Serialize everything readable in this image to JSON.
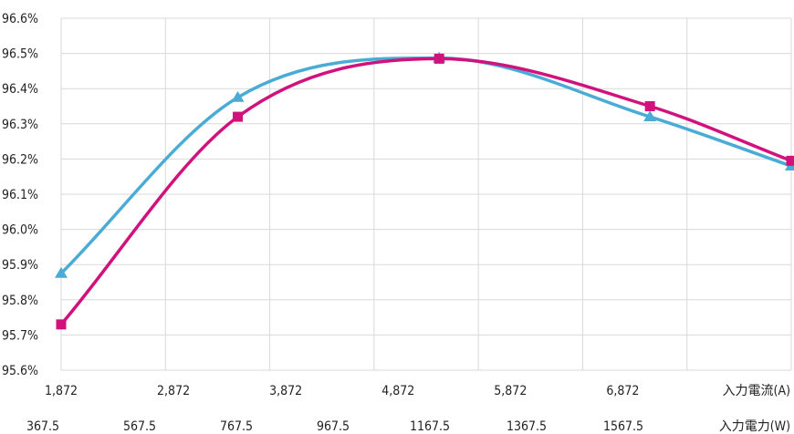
{
  "chart_data": {
    "type": "line",
    "title": "",
    "y_ticks": [
      "96.6%",
      "96.5%",
      "96.4%",
      "96.3%",
      "96.2%",
      "96.1%",
      "96.0%",
      "95.9%",
      "95.8%",
      "95.7%",
      "95.6%"
    ],
    "ylim": [
      95.6,
      96.6
    ],
    "grid": true,
    "x_axis_1": {
      "ticks": [
        "1,872",
        "2,872",
        "3,872",
        "4,872",
        "5,872",
        "6,872"
      ],
      "label": "入力電流(A)",
      "range": [
        1872,
        8072
      ]
    },
    "x_axis_2": {
      "ticks": [
        "367.5",
        "567.5",
        "767.5",
        "967.5",
        "1167.5",
        "1367.5",
        "1567.5"
      ],
      "label": "入力電力(W)"
    },
    "series": [
      {
        "color": "#4aacd6",
        "marker": "triangle",
        "points": [
          [
            1872,
            95.875
          ],
          [
            3372,
            96.375
          ],
          [
            5082,
            96.487
          ],
          [
            6872,
            96.32
          ],
          [
            8072,
            96.18
          ]
        ]
      },
      {
        "color": "#d1127d",
        "marker": "square",
        "points": [
          [
            1872,
            95.73
          ],
          [
            3372,
            96.32
          ],
          [
            5082,
            96.485
          ],
          [
            6872,
            96.35
          ],
          [
            8072,
            96.195
          ]
        ]
      }
    ]
  }
}
